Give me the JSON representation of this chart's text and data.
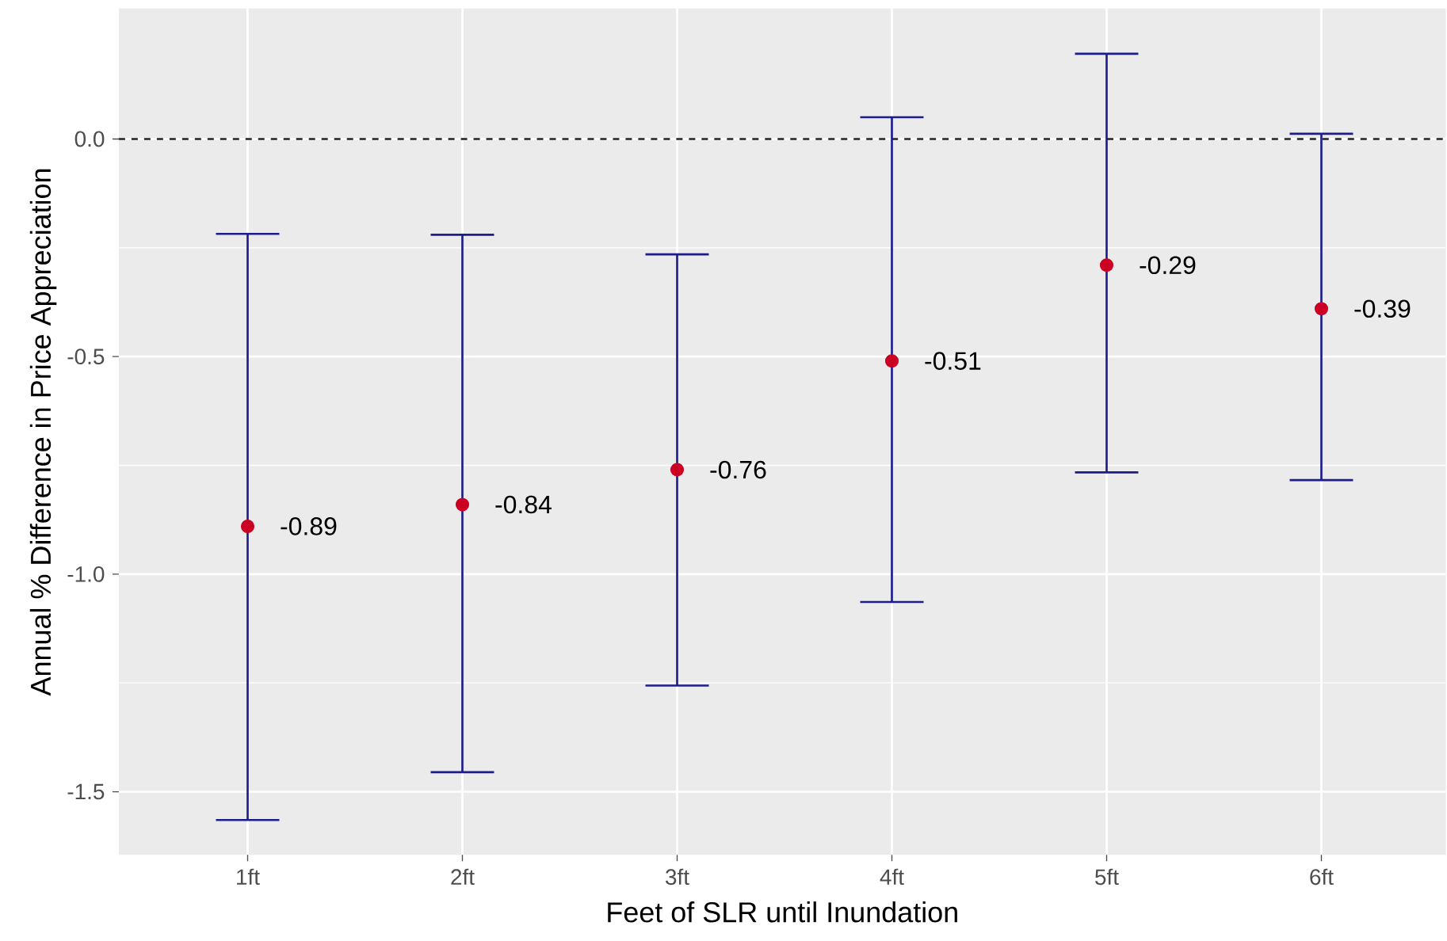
{
  "chart_data": {
    "type": "scatter",
    "xlabel": "Feet of SLR until Inundation",
    "ylabel": "Annual % Difference in Price Appreciation",
    "categories": [
      "1ft",
      "2ft",
      "3ft",
      "4ft",
      "5ft",
      "6ft"
    ],
    "series": [
      {
        "color": "#cc0022",
        "values": [
          -0.89,
          -0.84,
          -0.76,
          -0.51,
          -0.29,
          -0.39
        ],
        "errors": [
          [
            -1.565,
            -0.218
          ],
          [
            -1.455,
            -0.22
          ],
          [
            -1.256,
            -0.265
          ],
          [
            -1.064,
            0.05
          ],
          [
            -0.766,
            0.196
          ],
          [
            -0.784,
            0.012
          ]
        ]
      }
    ],
    "data_labels": true,
    "ylim": [
      -1.645,
      0.3
    ],
    "yticks": [
      {
        "value": -1.5,
        "label": "-1.5"
      },
      {
        "value": -1.0,
        "label": "-1.0"
      },
      {
        "value": -0.5,
        "label": "-0.5"
      },
      {
        "value": 0,
        "label": "0.0"
      }
    ],
    "grid": true,
    "ref_lines": [
      {
        "axis": "y",
        "value": 0,
        "color": "#222222",
        "line_style": "dashed"
      }
    ]
  }
}
